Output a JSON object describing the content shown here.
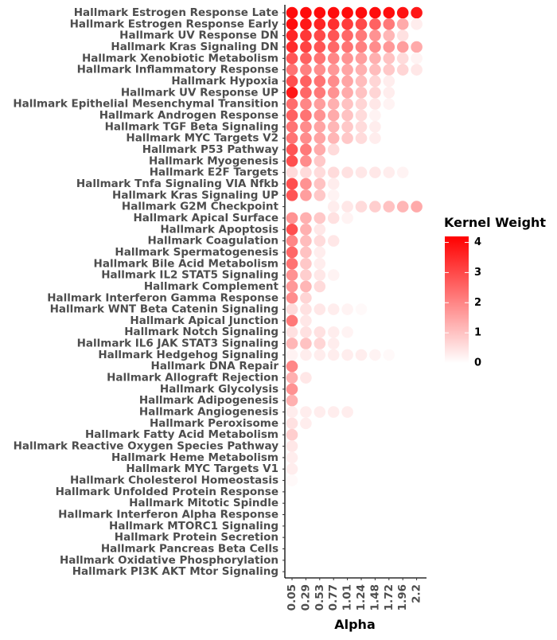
{
  "chart_data": {
    "type": "heatmap",
    "subtype": "dot-matrix",
    "title": "",
    "xlabel": "Alpha",
    "ylabel": "",
    "x": [
      "0.05",
      "0.29",
      "0.53",
      "0.77",
      "1.01",
      "1.24",
      "1.48",
      "1.72",
      "1.96",
      "2.2"
    ],
    "y": [
      "Hallmark Estrogen Response Late",
      "Hallmark Estrogen Response Early",
      "Hallmark UV Response DN",
      "Hallmark Kras Signaling DN",
      "Hallmark Xenobiotic Metabolism",
      "Hallmark Inflammatory Response",
      "Hallmark Hypoxia",
      "Hallmark UV Response UP",
      "Hallmark Epithelial Mesenchymal Transition",
      "Hallmark Androgen Response",
      "Hallmark TGF Beta Signaling",
      "Hallmark MYC Targets V2",
      "Hallmark P53 Pathway",
      "Hallmark Myogenesis",
      "Hallmark E2F Targets",
      "Hallmark Tnfa Signaling VIA Nfkb",
      "Hallmark Kras Signaling UP",
      "Hallmark G2M Checkpoint",
      "Hallmark Apical Surface",
      "Hallmark Apoptosis",
      "Hallmark Coagulation",
      "Hallmark Spermatogenesis",
      "Hallmark Bile Acid Metabolism",
      "Hallmark IL2 STAT5 Signaling",
      "Hallmark Complement",
      "Hallmark Interferon Gamma Response",
      "Hallmark WNT Beta Catenin Signaling",
      "Hallmark Apical Junction",
      "Hallmark Notch Signaling",
      "Hallmark IL6 JAK STAT3 Signaling",
      "Hallmark Hedgehog Signaling",
      "Hallmark DNA Repair",
      "Hallmark Allograft Rejection",
      "Hallmark Glycolysis",
      "Hallmark Adipogenesis",
      "Hallmark Angiogenesis",
      "Hallmark Peroxisome",
      "Hallmark Fatty Acid Metabolism",
      "Hallmark Reactive Oxygen Species Pathway",
      "Hallmark Heme Metabolism",
      "Hallmark MYC Targets V1",
      "Hallmark Cholesterol Homeostasis",
      "Hallmark Unfolded Protein Response",
      "Hallmark Mitotic Spindle",
      "Hallmark Interferon Alpha Response",
      "Hallmark MTORC1 Signaling",
      "Hallmark Protein Secretion",
      "Hallmark Pancreas Beta Cells",
      "Hallmark Oxidative Phosphorylation",
      "Hallmark PI3K AKT Mtor Signaling"
    ],
    "values": [
      [
        4.0,
        4.0,
        4.0,
        4.0,
        4.0,
        4.0,
        4.0,
        4.0,
        3.9,
        3.8
      ],
      [
        4.0,
        3.8,
        3.6,
        3.4,
        3.2,
        3.0,
        2.6,
        2.2,
        1.4,
        0.3
      ],
      [
        3.6,
        3.3,
        3.0,
        2.8,
        2.5,
        2.2,
        1.8,
        1.2,
        0.5,
        null
      ],
      [
        3.5,
        3.1,
        2.8,
        2.5,
        2.3,
        2.1,
        1.9,
        1.7,
        1.6,
        1.4
      ],
      [
        2.8,
        2.6,
        2.3,
        2.0,
        1.8,
        1.6,
        1.3,
        1.0,
        0.6,
        0.2
      ],
      [
        2.3,
        2.1,
        1.9,
        1.7,
        1.5,
        1.3,
        1.1,
        0.9,
        0.7,
        0.4
      ],
      [
        2.9,
        2.6,
        2.3,
        1.9,
        1.5,
        1.1,
        0.7,
        0.3,
        null,
        null
      ],
      [
        3.8,
        2.5,
        2.2,
        1.8,
        1.4,
        1.0,
        0.7,
        0.3,
        null,
        null
      ],
      [
        2.4,
        2.0,
        1.6,
        1.3,
        1.0,
        0.7,
        0.4,
        0.2,
        null,
        null
      ],
      [
        2.6,
        2.3,
        1.8,
        1.4,
        1.0,
        0.6,
        0.2,
        null,
        null,
        null
      ],
      [
        2.3,
        1.9,
        1.5,
        1.2,
        0.9,
        0.6,
        0.3,
        null,
        null,
        null
      ],
      [
        2.3,
        1.9,
        1.5,
        1.2,
        0.9,
        0.6,
        0.3,
        null,
        null,
        null
      ],
      [
        2.8,
        2.2,
        1.4,
        0.6,
        null,
        null,
        null,
        null,
        null,
        null
      ],
      [
        2.9,
        1.9,
        0.9,
        null,
        null,
        null,
        null,
        null,
        null,
        null
      ],
      [
        0.6,
        0.6,
        0.6,
        0.6,
        0.5,
        0.4,
        0.4,
        0.3,
        0.2,
        null
      ],
      [
        2.9,
        1.8,
        1.0,
        0.3,
        null,
        null,
        null,
        null,
        null,
        null
      ],
      [
        2.8,
        1.6,
        0.9,
        0.2,
        null,
        null,
        null,
        null,
        null,
        null
      ],
      [
        null,
        null,
        null,
        0.3,
        0.4,
        0.6,
        0.8,
        1.0,
        1.2,
        1.4
      ],
      [
        1.8,
        1.3,
        0.9,
        0.5,
        0.2,
        null,
        null,
        null,
        null,
        null
      ],
      [
        2.9,
        1.3,
        0.4,
        null,
        null,
        null,
        null,
        null,
        null,
        null
      ],
      [
        2.0,
        1.1,
        0.6,
        0.4,
        null,
        null,
        null,
        null,
        null,
        null
      ],
      [
        2.5,
        1.0,
        0.3,
        null,
        null,
        null,
        null,
        null,
        null,
        null
      ],
      [
        2.3,
        0.9,
        0.3,
        null,
        null,
        null,
        null,
        null,
        null,
        null
      ],
      [
        1.8,
        0.8,
        0.4,
        0.2,
        null,
        null,
        null,
        null,
        null,
        null
      ],
      [
        1.7,
        1.2,
        0.6,
        null,
        null,
        null,
        null,
        null,
        null,
        null
      ],
      [
        1.9,
        0.7,
        null,
        null,
        null,
        null,
        null,
        null,
        null,
        null
      ],
      [
        0.6,
        0.5,
        0.4,
        0.3,
        0.2,
        0.1,
        null,
        null,
        null,
        null
      ],
      [
        2.2,
        0.4,
        null,
        null,
        null,
        null,
        null,
        null,
        null,
        null
      ],
      [
        0.5,
        0.5,
        0.5,
        0.3,
        0.2,
        null,
        null,
        null,
        null,
        null
      ],
      [
        1.2,
        1.0,
        0.7,
        0.3,
        null,
        null,
        null,
        null,
        null,
        null
      ],
      [
        0.2,
        0.3,
        0.3,
        0.3,
        0.3,
        0.3,
        0.2,
        0.1,
        null,
        null
      ],
      [
        2.0,
        null,
        null,
        null,
        null,
        null,
        null,
        null,
        null,
        null
      ],
      [
        1.3,
        0.4,
        null,
        null,
        null,
        null,
        null,
        null,
        null,
        null
      ],
      [
        1.8,
        null,
        null,
        null,
        null,
        null,
        null,
        null,
        null,
        null
      ],
      [
        1.3,
        null,
        null,
        null,
        null,
        null,
        null,
        null,
        null,
        null
      ],
      [
        0.3,
        0.3,
        0.3,
        0.3,
        0.3,
        null,
        null,
        null,
        null,
        null
      ],
      [
        0.5,
        0.3,
        null,
        null,
        null,
        null,
        null,
        null,
        null,
        null
      ],
      [
        0.8,
        null,
        null,
        null,
        null,
        null,
        null,
        null,
        null,
        null
      ],
      [
        0.4,
        null,
        null,
        null,
        null,
        null,
        null,
        null,
        null,
        null
      ],
      [
        0.3,
        null,
        null,
        null,
        null,
        null,
        null,
        null,
        null,
        null
      ],
      [
        0.3,
        null,
        null,
        null,
        null,
        null,
        null,
        null,
        null,
        null
      ],
      [
        0.1,
        null,
        null,
        null,
        null,
        null,
        null,
        null,
        null,
        null
      ],
      [
        null,
        null,
        null,
        null,
        null,
        null,
        null,
        null,
        null,
        null
      ],
      [
        null,
        null,
        null,
        null,
        null,
        null,
        null,
        null,
        null,
        null
      ],
      [
        null,
        null,
        null,
        null,
        null,
        null,
        null,
        null,
        null,
        null
      ],
      [
        null,
        null,
        null,
        null,
        null,
        null,
        null,
        null,
        null,
        null
      ],
      [
        null,
        null,
        null,
        null,
        null,
        null,
        null,
        null,
        null,
        null
      ],
      [
        null,
        null,
        null,
        null,
        null,
        null,
        null,
        null,
        null,
        null
      ],
      [
        null,
        null,
        null,
        null,
        null,
        null,
        null,
        null,
        null,
        null
      ],
      [
        null,
        null,
        null,
        null,
        null,
        null,
        null,
        null,
        null,
        null
      ]
    ],
    "legend": {
      "title": "Kernel Weight",
      "placement": "right",
      "ticks": [
        0,
        1,
        2,
        3,
        4
      ],
      "range": [
        0,
        4.2
      ],
      "color_low": "#ffffff",
      "color_high": "#ff0000"
    },
    "grid": false
  }
}
